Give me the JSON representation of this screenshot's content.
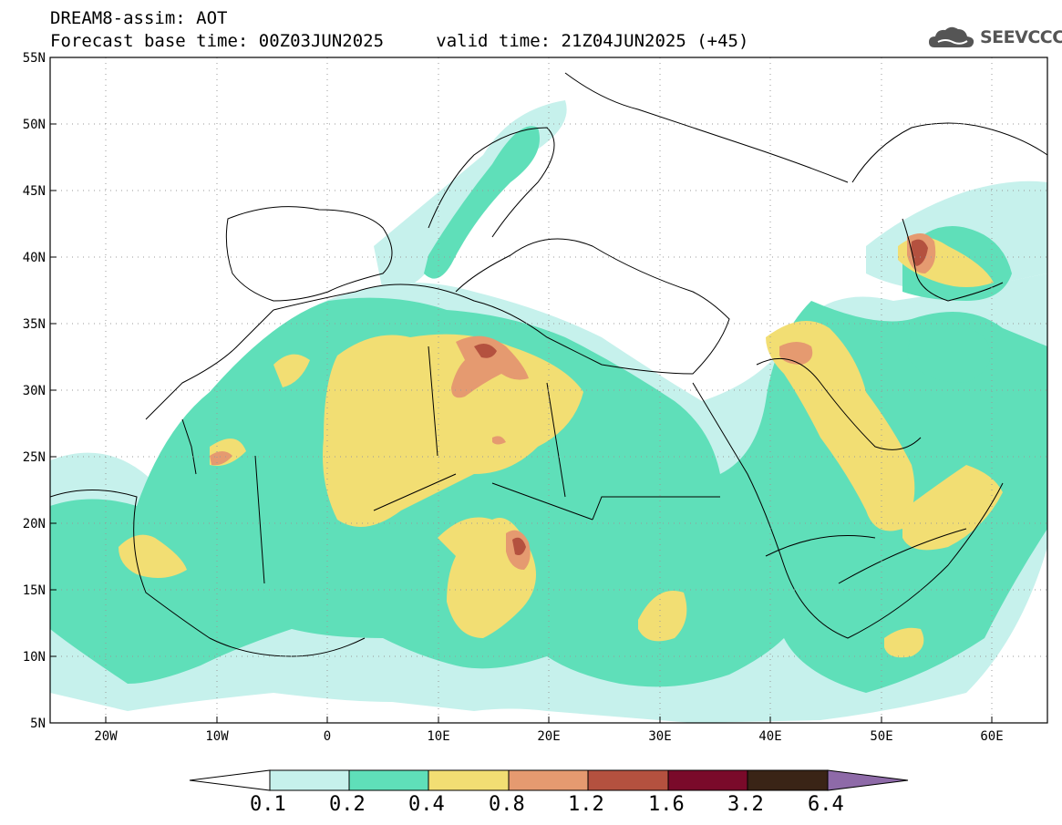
{
  "header": {
    "title": "DREAM8-assim: AOT",
    "base_time_label": "Forecast base time: 00Z03JUN2025",
    "valid_time_label": "valid time: 21Z04JUN2025 (+45)",
    "logo_text": "SEEVCCC"
  },
  "map": {
    "latitude_labels": [
      "55N",
      "50N",
      "45N",
      "40N",
      "35N",
      "30N",
      "25N",
      "20N",
      "15N",
      "10N",
      "5N"
    ],
    "longitude_labels": [
      "20W",
      "10W",
      "0",
      "10E",
      "20E",
      "30E",
      "40E",
      "50E",
      "60E"
    ],
    "colors": {
      "level_0_1": "#c6f1ec",
      "level_0_2": "#5fdfb9",
      "level_0_4": "#f2de73",
      "level_0_8": "#e59a70",
      "level_1_2": "#b4513f",
      "level_1_6": "#7a0a2a",
      "level_3_2": "#3a2416",
      "level_6_4": "#8e6aa8"
    }
  },
  "colorbar": {
    "labels": [
      "0.1",
      "0.2",
      "0.4",
      "0.8",
      "1.2",
      "1.6",
      "3.2",
      "6.4"
    ]
  }
}
